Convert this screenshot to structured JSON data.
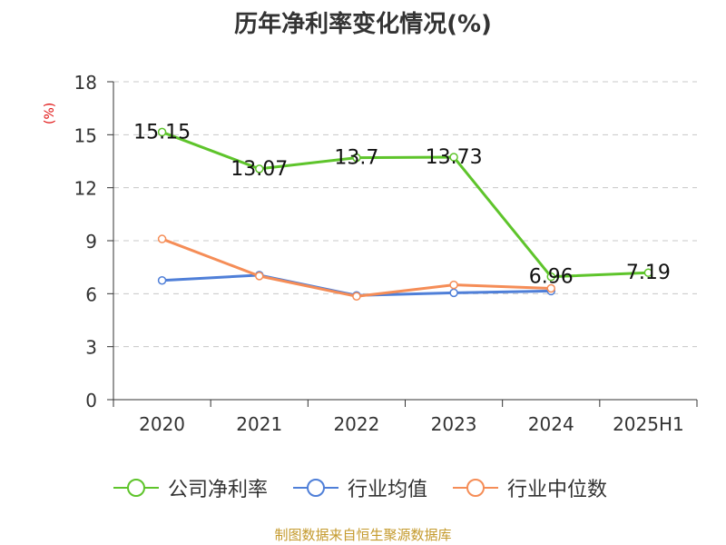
{
  "chart_data": {
    "type": "line",
    "title": "历年净利率变化情况(%)",
    "ylabel": "(%)",
    "categories": [
      "2020",
      "2021",
      "2022",
      "2023",
      "2024",
      "2025H1"
    ],
    "y_ticks": [
      "0",
      "3",
      "6",
      "9",
      "12",
      "15",
      "18"
    ],
    "ylim": [
      0,
      18
    ],
    "grid": true,
    "legend_position": "bottom",
    "series": [
      {
        "name": "公司净利率",
        "color": "#5ec42b",
        "values": [
          15.15,
          13.07,
          13.7,
          13.73,
          6.96,
          7.19
        ],
        "labels": [
          "15.15",
          "13.07",
          "13.7",
          "13.73",
          "6.96",
          "7.19"
        ]
      },
      {
        "name": "行业均值",
        "color": "#4f7fd8",
        "values": [
          6.75,
          7.05,
          5.9,
          6.05,
          6.15,
          null
        ]
      },
      {
        "name": "行业中位数",
        "color": "#f58d57",
        "values": [
          9.1,
          7.0,
          5.85,
          6.5,
          6.3,
          null
        ]
      }
    ]
  },
  "source_text": "制图数据来自恒生聚源数据库"
}
